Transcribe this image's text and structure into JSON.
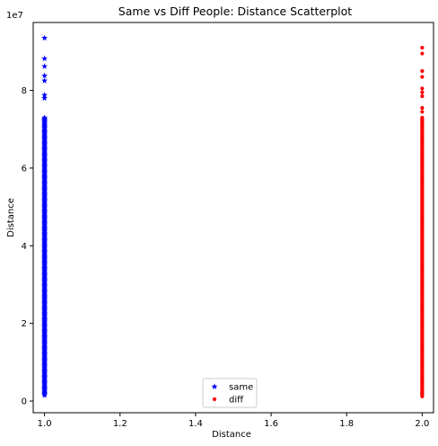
{
  "chart_data": {
    "type": "scatter",
    "title": "Same vs Diff People: Distance Scatterplot",
    "xlabel": "Distance",
    "ylabel": "Distance",
    "y_offset_label": "1e7",
    "xlim": [
      0.97,
      2.03
    ],
    "ylim": [
      -0.3,
      9.75
    ],
    "x_ticks": [
      1.0,
      1.2,
      1.4,
      1.6,
      1.8,
      2.0
    ],
    "x_tick_labels": [
      "1.0",
      "1.2",
      "1.4",
      "1.6",
      "1.8",
      "2.0"
    ],
    "y_ticks": [
      0,
      2,
      4,
      6,
      8
    ],
    "y_tick_labels": [
      "0",
      "2",
      "4",
      "6",
      "8"
    ],
    "legend": {
      "placement": "bottom-center"
    },
    "series": [
      {
        "name": "same",
        "marker": "star",
        "color": "#0000ff",
        "x": 1.0,
        "y_dense_range": [
          0.15,
          7.3
        ],
        "y_outliers": [
          9.35,
          8.82,
          8.62,
          8.38,
          8.25,
          7.88,
          7.8
        ]
      },
      {
        "name": "diff",
        "marker": "point",
        "color": "#ff0000",
        "x": 2.0,
        "y_dense_range": [
          0.12,
          7.3
        ],
        "y_outliers": [
          9.1,
          8.95,
          8.5,
          8.35,
          8.05,
          7.95,
          7.85,
          7.55,
          7.45
        ]
      }
    ]
  }
}
